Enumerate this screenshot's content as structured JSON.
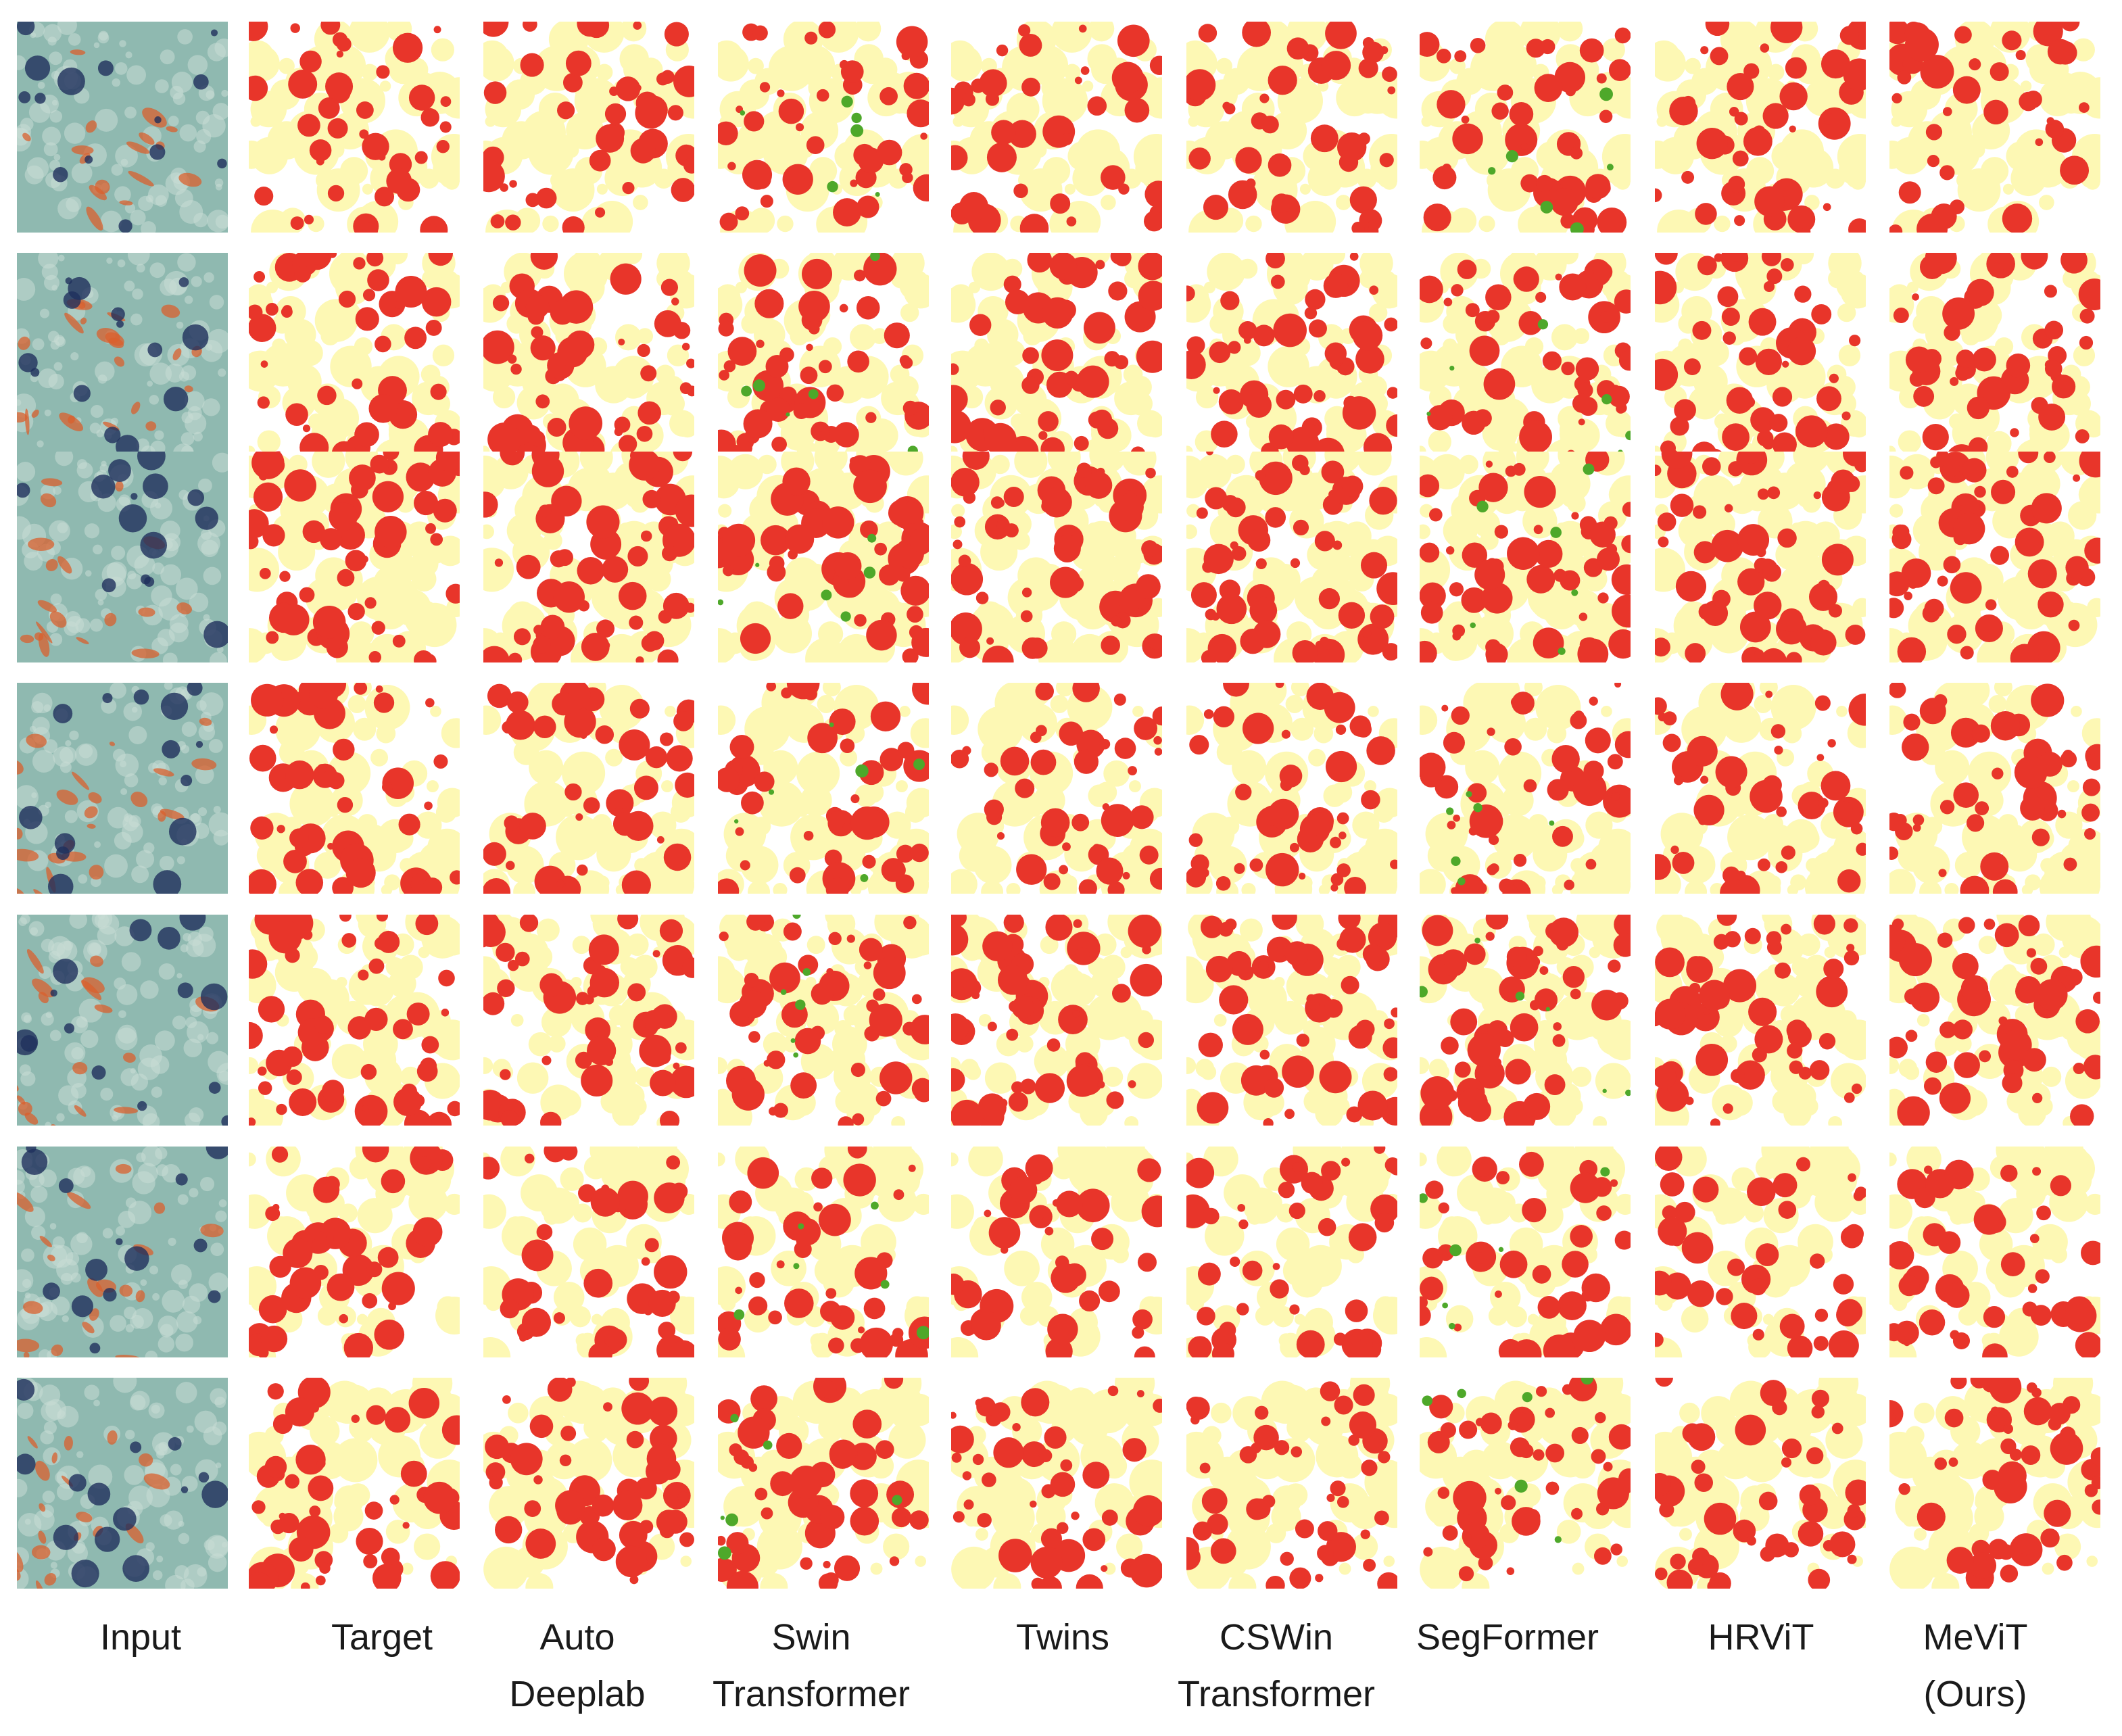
{
  "figure": {
    "columns": [
      {
        "key": "input",
        "label": "Input"
      },
      {
        "key": "target",
        "label": "Target"
      },
      {
        "key": "autodeeplab",
        "label": "Auto\nDeeplab"
      },
      {
        "key": "swin",
        "label": "Swin\nTransformer"
      },
      {
        "key": "twins",
        "label": "Twins"
      },
      {
        "key": "cswin",
        "label": "CSWin\nTransformer"
      },
      {
        "key": "segformer",
        "label": "SegFormer"
      },
      {
        "key": "hrvit",
        "label": "HRViT"
      },
      {
        "key": "mevit",
        "label": "MeViT\n(Ours)"
      }
    ],
    "rows": 7,
    "palette": {
      "background": "#ffffff",
      "class_red": "#e8352a",
      "class_yellow": "#fdf8b4",
      "class_green": "#4ea82a",
      "input_base": "#8fb9b0",
      "input_orange": "#d9602e",
      "input_dark": "#1f2f5c",
      "input_light": "#c8ddd6"
    }
  }
}
